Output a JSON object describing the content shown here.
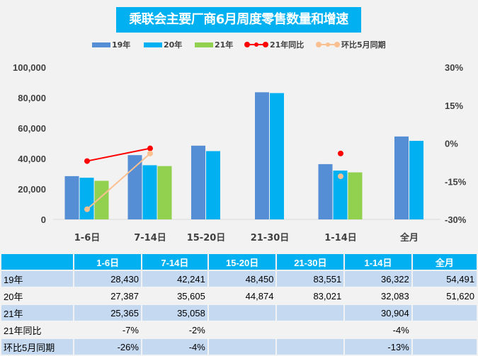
{
  "chart_data": {
    "type": "bar",
    "title": "乘联会主要厂商6月周度零售数量和增速",
    "categories": [
      "1-6日",
      "7-14日",
      "15-20日",
      "21-30日",
      "1-14日",
      "全月"
    ],
    "series": [
      {
        "name": "19年",
        "kind": "bar",
        "axis": "left",
        "color": "#558ed5",
        "values": [
          28430,
          42241,
          48450,
          83551,
          36322,
          54491
        ]
      },
      {
        "name": "20年",
        "kind": "bar",
        "axis": "left",
        "color": "#00b0f0",
        "values": [
          27387,
          35605,
          44874,
          83021,
          32083,
          51620
        ]
      },
      {
        "name": "21年",
        "kind": "bar",
        "axis": "left",
        "color": "#92d050",
        "values": [
          25365,
          35058,
          null,
          null,
          30904,
          null
        ]
      },
      {
        "name": "21年同比",
        "kind": "line",
        "axis": "right",
        "color": "#ff0000",
        "values": [
          -7,
          -2,
          null,
          null,
          -4,
          null
        ]
      },
      {
        "name": "环比5月同期",
        "kind": "line",
        "axis": "right",
        "color": "#fac090",
        "values": [
          -26,
          -4,
          null,
          null,
          -13,
          null
        ]
      }
    ],
    "left_axis": {
      "min": 0,
      "max": 100000,
      "ticks": [
        "0",
        "20,000",
        "40,000",
        "60,000",
        "80,000",
        "100,000"
      ]
    },
    "right_axis": {
      "min": -30,
      "max": 30,
      "unit": "%",
      "ticks": [
        "-30%",
        "-15%",
        "0%",
        "15%",
        "30%"
      ]
    },
    "grid": false,
    "legend": "top"
  },
  "table": {
    "header": [
      "",
      "1-6日",
      "7-14日",
      "15-20日",
      "21-30日",
      "1-14日",
      "全月"
    ],
    "rows": [
      [
        "19年",
        "28,430",
        "42,241",
        "48,450",
        "83,551",
        "36,322",
        "54,491"
      ],
      [
        "20年",
        "27,387",
        "35,605",
        "44,874",
        "83,021",
        "32,083",
        "51,620"
      ],
      [
        "21年",
        "25,365",
        "35,058",
        "",
        "",
        "30,904",
        ""
      ],
      [
        "21年同比",
        "-7%",
        "-2%",
        "",
        "",
        "-4%",
        ""
      ],
      [
        "环比5月同期",
        "-26%",
        "-4%",
        "",
        "",
        "-13%",
        ""
      ]
    ]
  }
}
